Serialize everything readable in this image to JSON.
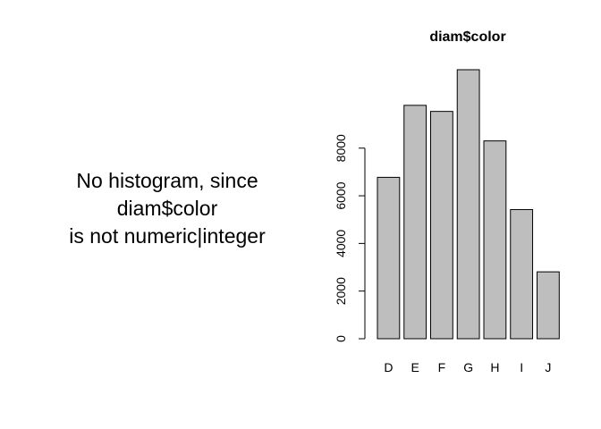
{
  "left_panel": {
    "message_lines": [
      "No histogram, since",
      "diam$color",
      "is not numeric|integer"
    ]
  },
  "chart_data": {
    "type": "bar",
    "title": "diam$color",
    "xlabel": "",
    "ylabel": "",
    "categories": [
      "D",
      "E",
      "F",
      "G",
      "H",
      "I",
      "J"
    ],
    "values": [
      6775,
      9797,
      9542,
      11292,
      8304,
      5422,
      2808
    ],
    "ylim": [
      0,
      11292
    ],
    "yticks": [
      0,
      2000,
      4000,
      6000,
      8000
    ],
    "grid": false,
    "legend": "none",
    "colors": {
      "bar_fill": "#bebebe",
      "bar_stroke": "#000000"
    }
  }
}
